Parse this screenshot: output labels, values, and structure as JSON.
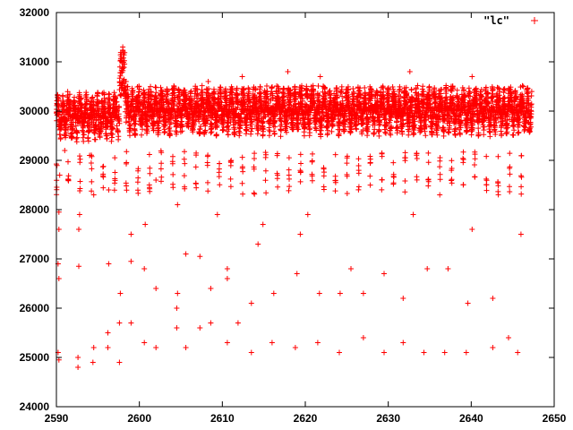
{
  "chart_data": {
    "type": "scatter",
    "title": "",
    "xlabel": "",
    "ylabel": "",
    "xlim": [
      2590,
      2650
    ],
    "ylim": [
      24000,
      32000
    ],
    "x_ticks": [
      2590,
      2600,
      2610,
      2620,
      2630,
      2640,
      2650
    ],
    "y_ticks": [
      24000,
      25000,
      26000,
      27000,
      28000,
      29000,
      30000,
      31000,
      32000
    ],
    "x_tick_labels": [
      "2590",
      "2600",
      "2610",
      "2620",
      "2630",
      "2640",
      "2650"
    ],
    "y_tick_labels": [
      "24000",
      "25000",
      "26000",
      "27000",
      "28000",
      "29000",
      "30000",
      "31000",
      "32000"
    ],
    "grid": false,
    "legend_position": "top-right",
    "marker": "+",
    "color": "#ff0000",
    "series": [
      {
        "name": "\"lc\"",
        "x_range": [
          2590.0,
          2647.3
        ],
        "baseline": 30000,
        "band_high": 30600,
        "band_low": 29200,
        "eclipse_period_days": 1.4,
        "eclipse_depths": [
          25000,
          25600,
          26500,
          27600,
          28400,
          29000
        ],
        "flare": {
          "x_range": [
            2597.6,
            2598.3
          ],
          "y_range": [
            30300,
            31300
          ]
        },
        "points": [
          [
            2590.2,
            25100
          ],
          [
            2590.3,
            24950
          ],
          [
            2590.3,
            26600
          ],
          [
            2590.2,
            26900
          ],
          [
            2590.3,
            27600
          ],
          [
            2590.3,
            27950
          ],
          [
            2590.4,
            28700
          ],
          [
            2591.0,
            29200
          ],
          [
            2592.6,
            25000
          ],
          [
            2592.6,
            24800
          ],
          [
            2592.7,
            26850
          ],
          [
            2592.7,
            27600
          ],
          [
            2592.8,
            27900
          ],
          [
            2594.0,
            29100
          ],
          [
            2594.5,
            25200
          ],
          [
            2594.4,
            24900
          ],
          [
            2594.5,
            28300
          ],
          [
            2596.2,
            25500
          ],
          [
            2596.2,
            25200
          ],
          [
            2596.3,
            28400
          ],
          [
            2596.3,
            26900
          ],
          [
            2597.6,
            24900
          ],
          [
            2597.6,
            25700
          ],
          [
            2597.7,
            26300
          ],
          [
            2598.0,
            31300
          ],
          [
            2597.9,
            31000
          ],
          [
            2599.0,
            25700
          ],
          [
            2599.0,
            26950
          ],
          [
            2599.0,
            27500
          ],
          [
            2600.6,
            25300
          ],
          [
            2600.6,
            26800
          ],
          [
            2600.7,
            27700
          ],
          [
            2601.2,
            28500
          ],
          [
            2602.0,
            25200
          ],
          [
            2602.0,
            26400
          ],
          [
            2602.0,
            28600
          ],
          [
            2604.5,
            25600
          ],
          [
            2604.5,
            26000
          ],
          [
            2604.6,
            26300
          ],
          [
            2604.6,
            28100
          ],
          [
            2605.6,
            25200
          ],
          [
            2605.6,
            27100
          ],
          [
            2607.3,
            25600
          ],
          [
            2607.3,
            27050
          ],
          [
            2608.6,
            25700
          ],
          [
            2608.6,
            26400
          ],
          [
            2609.4,
            27900
          ],
          [
            2610.6,
            25300
          ],
          [
            2610.6,
            26600
          ],
          [
            2610.6,
            26800
          ],
          [
            2611.9,
            25700
          ],
          [
            2613.5,
            25100
          ],
          [
            2613.5,
            26100
          ],
          [
            2614.3,
            27300
          ],
          [
            2614.9,
            27700
          ],
          [
            2616.0,
            25300
          ],
          [
            2616.2,
            26300
          ],
          [
            2618.8,
            25200
          ],
          [
            2619.0,
            26700
          ],
          [
            2619.4,
            27500
          ],
          [
            2620.3,
            27900
          ],
          [
            2621.5,
            25300
          ],
          [
            2621.7,
            26300
          ],
          [
            2624.1,
            25100
          ],
          [
            2624.2,
            26300
          ],
          [
            2625.5,
            26800
          ],
          [
            2627.0,
            25400
          ],
          [
            2627.0,
            26300
          ],
          [
            2629.5,
            25100
          ],
          [
            2629.5,
            26700
          ],
          [
            2631.8,
            25300
          ],
          [
            2631.8,
            26200
          ],
          [
            2633.0,
            27900
          ],
          [
            2634.3,
            25100
          ],
          [
            2634.7,
            26800
          ],
          [
            2636.8,
            25100
          ],
          [
            2637.2,
            26800
          ],
          [
            2639.4,
            25100
          ],
          [
            2639.6,
            26100
          ],
          [
            2640.1,
            27600
          ],
          [
            2642.6,
            25200
          ],
          [
            2642.6,
            26200
          ],
          [
            2644.5,
            25400
          ],
          [
            2645.6,
            25100
          ],
          [
            2646.0,
            27500
          ],
          [
            2598.4,
            30600
          ],
          [
            2598.6,
            30500
          ],
          [
            2608.3,
            30600
          ],
          [
            2612.4,
            30700
          ],
          [
            2617.9,
            30800
          ],
          [
            2621.8,
            30700
          ],
          [
            2632.6,
            30800
          ],
          [
            2640.1,
            30700
          ],
          [
            2646.3,
            30500
          ]
        ]
      }
    ]
  }
}
